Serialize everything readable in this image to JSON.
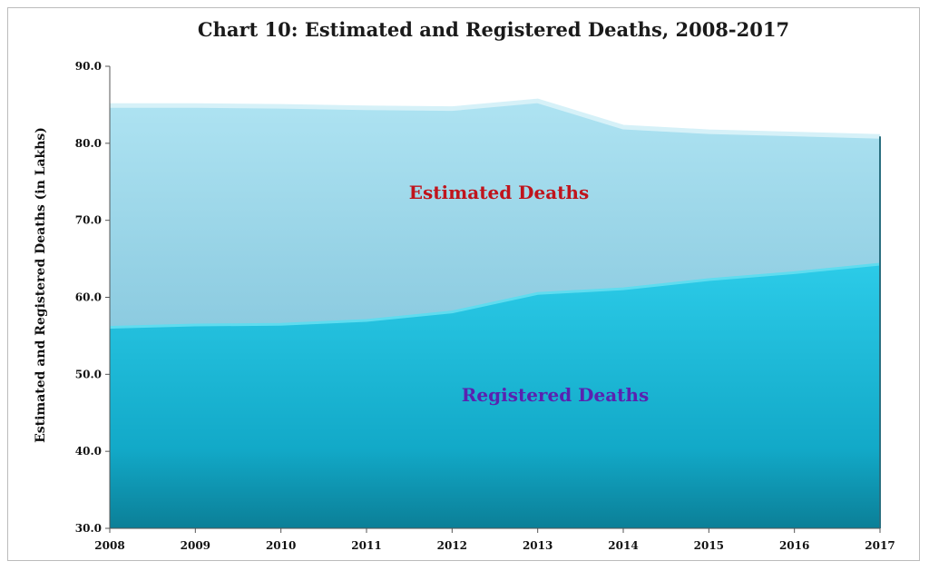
{
  "chart_data": {
    "type": "area",
    "title": "Chart 10: Estimated and Registered Deaths, 2008-2017",
    "xlabel": "",
    "ylabel": "Estimated and Registered Deaths (in Lakhs)",
    "categories": [
      "2008",
      "2009",
      "2010",
      "2011",
      "2012",
      "2013",
      "2014",
      "2015",
      "2016",
      "2017"
    ],
    "ylim": [
      30,
      90
    ],
    "yticks": [
      "30.0",
      "40.0",
      "50.0",
      "60.0",
      "70.0",
      "80.0",
      "90.0"
    ],
    "series": [
      {
        "name": "Estimated Deaths",
        "values": [
          84.9,
          84.9,
          84.8,
          84.6,
          84.5,
          85.5,
          82.1,
          81.5,
          81.2,
          80.9
        ],
        "color": "#9dd8ea",
        "label_color": "#c0141c"
      },
      {
        "name": "Registered Deaths",
        "values": [
          56.1,
          56.4,
          56.5,
          57.0,
          58.1,
          60.5,
          61.1,
          62.3,
          63.2,
          64.3
        ],
        "color": "#1cc3e2",
        "label_color": "#5a22b0"
      }
    ]
  }
}
